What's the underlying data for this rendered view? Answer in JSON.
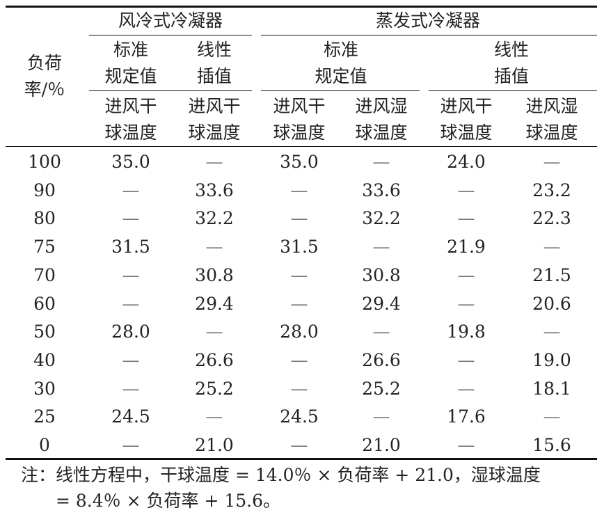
{
  "header": {
    "stub": [
      "负荷",
      "率/％"
    ],
    "groups": [
      {
        "label": "风冷式冷凝器",
        "sub": [
          {
            "label": [
              "标准",
              "规定值"
            ],
            "cols": [
              [
                "进风干",
                "球温度"
              ]
            ]
          },
          {
            "label": [
              "线性",
              "插值"
            ],
            "cols": [
              [
                "进风干",
                "球温度"
              ]
            ]
          }
        ]
      },
      {
        "label": "蒸发式冷凝器",
        "sub": [
          {
            "label": [
              "标准",
              "规定值"
            ],
            "cols": [
              [
                "进风干",
                "球温度"
              ],
              [
                "进风湿",
                "球温度"
              ]
            ]
          },
          {
            "label": [
              "线性",
              "插值"
            ],
            "cols": [
              [
                "进风干",
                "球温度"
              ],
              [
                "进风湿",
                "球温度"
              ]
            ]
          }
        ]
      }
    ]
  },
  "table": {
    "rows": [
      [
        "100",
        "35.0",
        "—",
        "35.0",
        "—",
        "24.0",
        "—"
      ],
      [
        "90",
        "—",
        "33.6",
        "—",
        "33.6",
        "—",
        "23.2"
      ],
      [
        "80",
        "—",
        "32.2",
        "—",
        "32.2",
        "—",
        "22.3"
      ],
      [
        "75",
        "31.5",
        "—",
        "31.5",
        "—",
        "21.9",
        "—"
      ],
      [
        "70",
        "—",
        "30.8",
        "—",
        "30.8",
        "—",
        "21.5"
      ],
      [
        "60",
        "—",
        "29.4",
        "—",
        "29.4",
        "—",
        "20.6"
      ],
      [
        "50",
        "28.0",
        "—",
        "28.0",
        "—",
        "19.8",
        "—"
      ],
      [
        "40",
        "—",
        "26.6",
        "—",
        "26.6",
        "—",
        "19.0"
      ],
      [
        "30",
        "—",
        "25.2",
        "—",
        "25.2",
        "—",
        "18.1"
      ],
      [
        "25",
        "24.5",
        "—",
        "24.5",
        "—",
        "17.6",
        "—"
      ],
      [
        "0",
        "—",
        "21.0",
        "—",
        "21.0",
        "—",
        "15.6"
      ]
    ]
  },
  "note": [
    "注：线性方程中，干球温度 = 14.0％ × 负荷率 + 21.0，湿球温度",
    "= 8.4％ × 负荷率 + 15.6。"
  ]
}
